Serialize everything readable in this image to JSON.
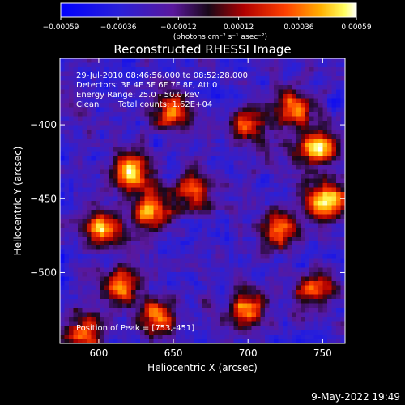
{
  "chart_data": {
    "type": "heatmap",
    "title": "Reconstructed RHESSI Image",
    "xlabel": "Heliocentric X (arcsec)",
    "ylabel": "Heliocentric Y (arcsec)",
    "xlim": [
      574,
      765
    ],
    "ylim": [
      -548,
      -355
    ],
    "x_ticks": [
      600,
      650,
      700,
      750
    ],
    "x_tick_labels": [
      "600",
      "650",
      "700",
      "750"
    ],
    "y_ticks": [
      -400,
      -450,
      -500
    ],
    "y_tick_labels": [
      "−400",
      "−450",
      "−500"
    ],
    "colorbar": {
      "range": [
        -0.00059,
        0.00059
      ],
      "tick_values": [
        -0.00059,
        -0.00036,
        -0.00012,
        0.00012,
        0.00036,
        0.00059
      ],
      "tick_labels": [
        "−0.00059",
        "−0.00036",
        "−0.00012",
        "0.00012",
        "0.00036",
        "0.00059"
      ],
      "unit_label": "(photons cm⁻² s⁻¹ asec⁻²)",
      "colormap": "blue-purple-red-yellow-white"
    },
    "sources": [
      {
        "x": 622,
        "y": -432,
        "value": 0.00052
      },
      {
        "x": 635,
        "y": -458,
        "value": 0.00049
      },
      {
        "x": 753,
        "y": -451,
        "value": 0.00059
      },
      {
        "x": 747,
        "y": -416,
        "value": 0.0005
      },
      {
        "x": 602,
        "y": -470,
        "value": 0.00045
      },
      {
        "x": 615,
        "y": -510,
        "value": 0.00042
      },
      {
        "x": 650,
        "y": -390,
        "value": 0.0004
      },
      {
        "x": 665,
        "y": -445,
        "value": 0.00034
      },
      {
        "x": 700,
        "y": -400,
        "value": 0.00036
      },
      {
        "x": 730,
        "y": -390,
        "value": 0.0004
      },
      {
        "x": 720,
        "y": -470,
        "value": 0.00036
      },
      {
        "x": 700,
        "y": -525,
        "value": 0.00038
      },
      {
        "x": 745,
        "y": -512,
        "value": 0.00036
      },
      {
        "x": 640,
        "y": -530,
        "value": 0.00038
      },
      {
        "x": 590,
        "y": -540,
        "value": 0.00032
      }
    ],
    "annotations": {
      "time_range": "29-Jul-2010 08:46:56.000 to 08:52:28.000",
      "detectors": "Detectors: 3F 4F 5F 6F 7F 8F, Att 0",
      "energy": "Energy Range: 25.0 - 50.0 keV",
      "clean": "Clean",
      "total_counts": "Total counts: 1.62E+04",
      "peak": "Position of Peak = [753,-451]"
    }
  },
  "footer": {
    "date_stamp": "9-May-2022 19:49"
  }
}
